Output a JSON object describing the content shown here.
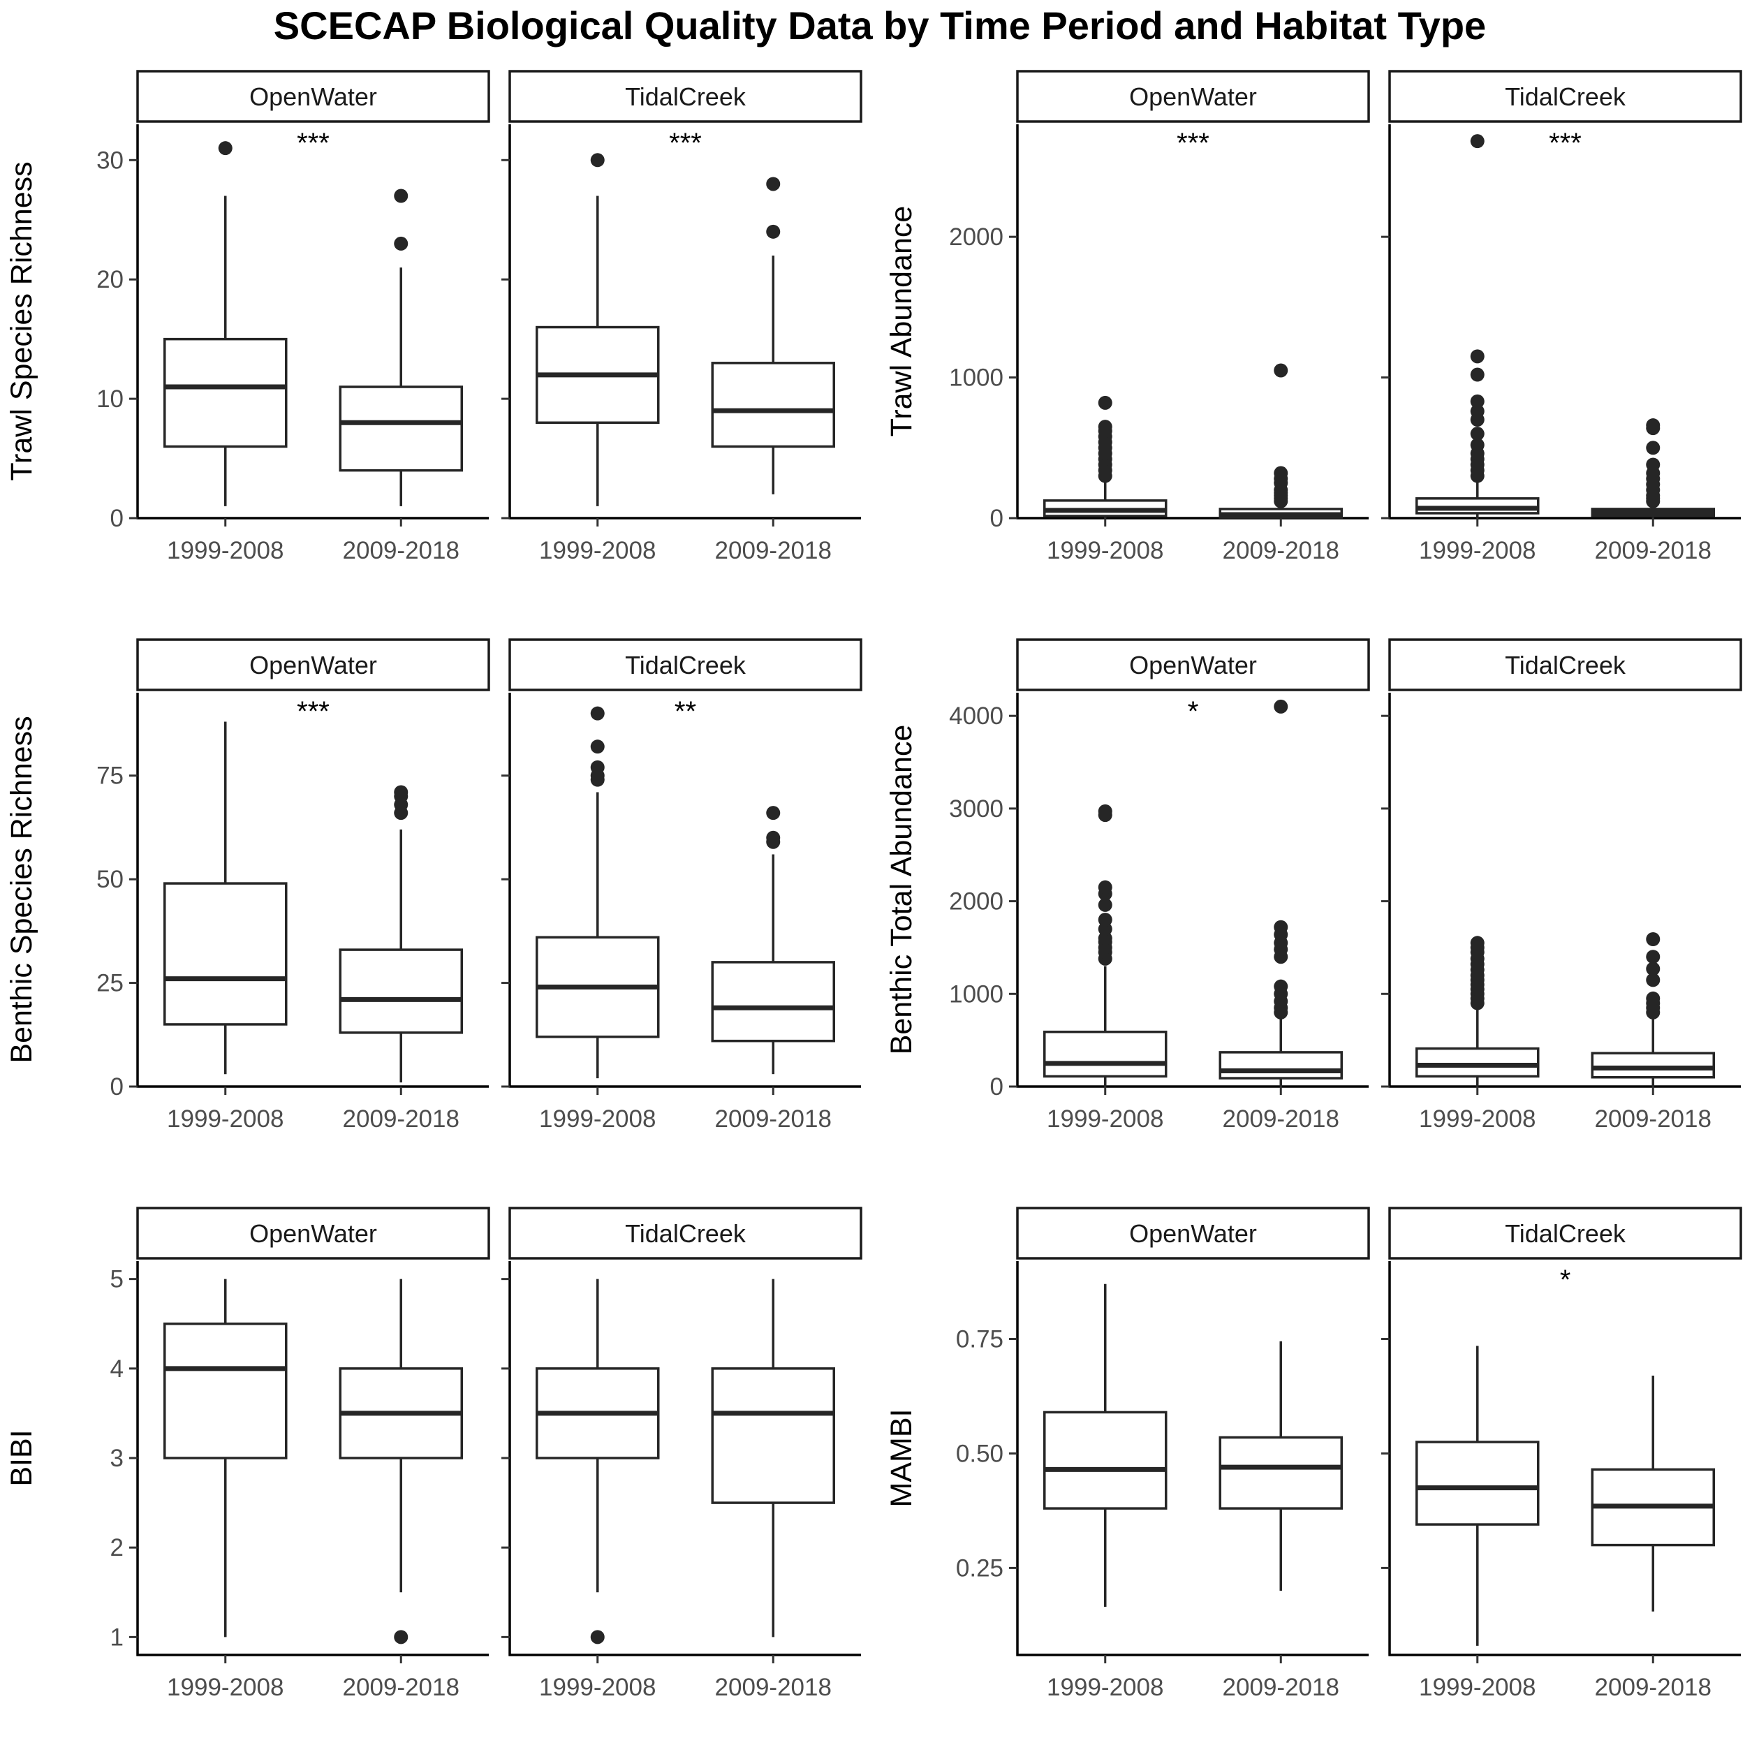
{
  "title": "SCECAP Biological Quality Data by Time Period and Habitat Type",
  "chart_data": [
    {
      "type": "boxplot",
      "ylabel": "Trawl Species Richness",
      "ylim": [
        0,
        33
      ],
      "yticks": [
        0,
        10,
        20,
        30
      ],
      "categories": [
        "1999-2008",
        "2009-2018"
      ],
      "facets": [
        {
          "name": "OpenWater",
          "significance": "***",
          "boxes": [
            {
              "category": "1999-2008",
              "min": 1,
              "q1": 6,
              "median": 11,
              "q3": 15,
              "max": 27,
              "outliers": [
                31
              ]
            },
            {
              "category": "2009-2018",
              "min": 1,
              "q1": 4,
              "median": 8,
              "q3": 11,
              "max": 21,
              "outliers": [
                23,
                27
              ]
            }
          ]
        },
        {
          "name": "TidalCreek",
          "significance": "***",
          "boxes": [
            {
              "category": "1999-2008",
              "min": 1,
              "q1": 8,
              "median": 12,
              "q3": 16,
              "max": 27,
              "outliers": [
                30
              ]
            },
            {
              "category": "2009-2018",
              "min": 2,
              "q1": 6,
              "median": 9,
              "q3": 13,
              "max": 22,
              "outliers": [
                24,
                28
              ]
            }
          ]
        }
      ]
    },
    {
      "type": "boxplot",
      "ylabel": "Trawl Abundance",
      "ylim": [
        0,
        2800
      ],
      "yticks": [
        0,
        1000,
        2000
      ],
      "categories": [
        "1999-2008",
        "2009-2018"
      ],
      "facets": [
        {
          "name": "OpenWater",
          "significance": "***",
          "boxes": [
            {
              "category": "1999-2008",
              "min": 0,
              "q1": 15,
              "median": 55,
              "q3": 125,
              "max": 280,
              "outliers": [
                300,
                340,
                380,
                420,
                460,
                500,
                540,
                580,
                620,
                650,
                820
              ]
            },
            {
              "category": "2009-2018",
              "min": 0,
              "q1": 5,
              "median": 25,
              "q3": 65,
              "max": 110,
              "outliers": [
                120,
                140,
                160,
                180,
                200,
                250,
                280,
                320,
                1050
              ]
            }
          ]
        },
        {
          "name": "TidalCreek",
          "significance": "***",
          "boxes": [
            {
              "category": "1999-2008",
              "min": 0,
              "q1": 35,
              "median": 70,
              "q3": 140,
              "max": 290,
              "outliers": [
                300,
                340,
                380,
                420,
                460,
                520,
                600,
                700,
                760,
                830,
                1020,
                1150,
                2680
              ]
            },
            {
              "category": "2009-2018",
              "min": 0,
              "q1": 15,
              "median": 40,
              "q3": 65,
              "max": 110,
              "outliers": [
                120,
                140,
                160,
                200,
                240,
                280,
                320,
                380,
                500,
                640,
                660
              ]
            }
          ]
        }
      ]
    },
    {
      "type": "boxplot",
      "ylabel": "Benthic Species Richness",
      "ylim": [
        0,
        95
      ],
      "yticks": [
        0,
        25,
        50,
        75
      ],
      "categories": [
        "1999-2008",
        "2009-2018"
      ],
      "facets": [
        {
          "name": "OpenWater",
          "significance": "***",
          "boxes": [
            {
              "category": "1999-2008",
              "min": 3,
              "q1": 15,
              "median": 26,
              "q3": 49,
              "max": 88,
              "outliers": []
            },
            {
              "category": "2009-2018",
              "min": 1,
              "q1": 13,
              "median": 21,
              "q3": 33,
              "max": 62,
              "outliers": [
                66,
                68,
                70,
                71
              ]
            }
          ]
        },
        {
          "name": "TidalCreek",
          "significance": "**",
          "boxes": [
            {
              "category": "1999-2008",
              "min": 2,
              "q1": 12,
              "median": 24,
              "q3": 36,
              "max": 71,
              "outliers": [
                74,
                75,
                77,
                82,
                90
              ]
            },
            {
              "category": "2009-2018",
              "min": 3,
              "q1": 11,
              "median": 19,
              "q3": 30,
              "max": 56,
              "outliers": [
                59,
                60,
                66
              ]
            }
          ]
        }
      ]
    },
    {
      "type": "boxplot",
      "ylabel": "Benthic Total Abundance",
      "ylim": [
        0,
        4250
      ],
      "yticks": [
        0,
        1000,
        2000,
        3000,
        4000
      ],
      "categories": [
        "1999-2008",
        "2009-2018"
      ],
      "facets": [
        {
          "name": "OpenWater",
          "significance": "*",
          "boxes": [
            {
              "category": "1999-2008",
              "min": 0,
              "q1": 110,
              "median": 250,
              "q3": 590,
              "max": 1300,
              "outliers": [
                1380,
                1450,
                1500,
                1560,
                1600,
                1700,
                1800,
                1960,
                2080,
                2150,
                2930,
                2970
              ]
            },
            {
              "category": "2009-2018",
              "min": 0,
              "q1": 90,
              "median": 170,
              "q3": 370,
              "max": 750,
              "outliers": [
                800,
                850,
                920,
                1000,
                1080,
                1400,
                1480,
                1550,
                1640,
                1720,
                4100
              ]
            }
          ]
        },
        {
          "name": "TidalCreek",
          "significance": "",
          "boxes": [
            {
              "category": "1999-2008",
              "min": 0,
              "q1": 110,
              "median": 230,
              "q3": 410,
              "max": 850,
              "outliers": [
                900,
                950,
                1000,
                1050,
                1100,
                1150,
                1200,
                1260,
                1320,
                1380,
                1450,
                1500,
                1550
              ]
            },
            {
              "category": "2009-2018",
              "min": 0,
              "q1": 100,
              "median": 200,
              "q3": 360,
              "max": 750,
              "outliers": [
                800,
                850,
                900,
                950,
                1150,
                1270,
                1400,
                1590
              ]
            }
          ]
        }
      ]
    },
    {
      "type": "boxplot",
      "ylabel": "BIBI",
      "ylim": [
        0.8,
        5.2
      ],
      "yticks": [
        1,
        2,
        3,
        4,
        5
      ],
      "categories": [
        "1999-2008",
        "2009-2018"
      ],
      "facets": [
        {
          "name": "OpenWater",
          "significance": "",
          "boxes": [
            {
              "category": "1999-2008",
              "min": 1,
              "q1": 3,
              "median": 4,
              "q3": 4.5,
              "max": 5,
              "outliers": []
            },
            {
              "category": "2009-2018",
              "min": 1.5,
              "q1": 3,
              "median": 3.5,
              "q3": 4,
              "max": 5,
              "outliers": [
                1
              ]
            }
          ]
        },
        {
          "name": "TidalCreek",
          "significance": "",
          "boxes": [
            {
              "category": "1999-2008",
              "min": 1.5,
              "q1": 3,
              "median": 3.5,
              "q3": 4,
              "max": 5,
              "outliers": [
                1
              ]
            },
            {
              "category": "2009-2018",
              "min": 1,
              "q1": 2.5,
              "median": 3.5,
              "q3": 4,
              "max": 5,
              "outliers": []
            }
          ]
        }
      ]
    },
    {
      "type": "boxplot",
      "ylabel": "MAMBI",
      "ylim": [
        0.06,
        0.92
      ],
      "yticks": [
        0.25,
        0.5,
        0.75
      ],
      "ytick_labels": [
        "0.25",
        "0.50",
        "0.75"
      ],
      "categories": [
        "1999-2008",
        "2009-2018"
      ],
      "facets": [
        {
          "name": "OpenWater",
          "significance": "",
          "boxes": [
            {
              "category": "1999-2008",
              "min": 0.165,
              "q1": 0.38,
              "median": 0.465,
              "q3": 0.59,
              "max": 0.87,
              "outliers": []
            },
            {
              "category": "2009-2018",
              "min": 0.2,
              "q1": 0.38,
              "median": 0.47,
              "q3": 0.535,
              "max": 0.745,
              "outliers": []
            }
          ]
        },
        {
          "name": "TidalCreek",
          "significance": "*",
          "boxes": [
            {
              "category": "1999-2008",
              "min": 0.08,
              "q1": 0.345,
              "median": 0.425,
              "q3": 0.525,
              "max": 0.735,
              "outliers": []
            },
            {
              "category": "2009-2018",
              "min": 0.155,
              "q1": 0.3,
              "median": 0.385,
              "q3": 0.465,
              "max": 0.67,
              "outliers": []
            }
          ]
        }
      ]
    }
  ]
}
